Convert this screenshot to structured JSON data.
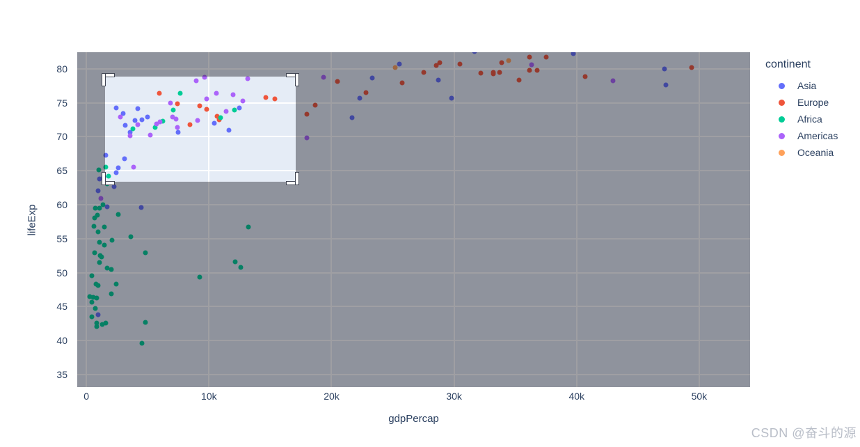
{
  "text_color": "#2a3f5f",
  "watermark": {
    "text": "CSDN @奋斗的源",
    "color": "#b9bec8"
  },
  "chart_data": {
    "type": "scatter",
    "title": "",
    "xlabel": "gdpPercap",
    "ylabel": "lifeExp",
    "x_tick_labels": [
      "0",
      "10k",
      "20k",
      "30k",
      "40k",
      "50k"
    ],
    "x_tick_values": [
      0,
      10000,
      20000,
      30000,
      40000,
      50000
    ],
    "y_tick_labels": [
      "35",
      "40",
      "45",
      "50",
      "55",
      "60",
      "65",
      "70",
      "75",
      "80"
    ],
    "y_tick_values": [
      35,
      40,
      45,
      50,
      55,
      60,
      65,
      70,
      75,
      80
    ],
    "x_range": [
      -750,
      54150
    ],
    "y_range": [
      33.15,
      82.45
    ],
    "grid": true,
    "plot_bg": "#E5ECF6",
    "grid_color": "#ffffff",
    "dim_color": "rgba(15,16,24,0.40)",
    "marker_size_px": 7,
    "legend": {
      "title": "continent",
      "position": "right",
      "entries": [
        {
          "label": "Asia",
          "color": "#636EFA"
        },
        {
          "label": "Europe",
          "color": "#EF553B"
        },
        {
          "label": "Africa",
          "color": "#00CC96"
        },
        {
          "label": "Americas",
          "color": "#AB63FA"
        },
        {
          "label": "Oceania",
          "color": "#FFA15A"
        }
      ]
    },
    "selection_box": {
      "x0": 1530,
      "x1": 17080,
      "y0": 63.4,
      "y1": 78.85
    },
    "series": [
      {
        "name": "Asia",
        "color": "#636EFA",
        "points": [
          [
            975,
            43.83
          ],
          [
            29796,
            75.64
          ],
          [
            1391,
            64.06
          ],
          [
            1714,
            59.72
          ],
          [
            4959,
            72.96
          ],
          [
            39725,
            82.21
          ],
          [
            2452,
            64.7
          ],
          [
            3541,
            70.65
          ],
          [
            11606,
            70.96
          ],
          [
            4471,
            59.55
          ],
          [
            25523,
            80.75
          ],
          [
            31656,
            82.6
          ],
          [
            4519,
            72.54
          ],
          [
            1593,
            67.3
          ],
          [
            23348,
            78.62
          ],
          [
            47307,
            77.59
          ],
          [
            10461,
            71.99
          ],
          [
            12452,
            74.24
          ],
          [
            3096,
            66.8
          ],
          [
            944,
            62.07
          ],
          [
            1091,
            63.79
          ],
          [
            22316,
            75.64
          ],
          [
            2606,
            65.48
          ],
          [
            3190,
            71.69
          ],
          [
            21655,
            72.78
          ],
          [
            47143,
            79.97
          ],
          [
            3970,
            72.4
          ],
          [
            4185,
            74.14
          ],
          [
            28718,
            78.4
          ],
          [
            7458,
            70.62
          ],
          [
            2442,
            74.25
          ],
          [
            3025,
            73.42
          ],
          [
            2281,
            62.7
          ]
        ]
      },
      {
        "name": "Europe",
        "color": "#EF553B",
        "points": [
          [
            5937,
            76.42
          ],
          [
            36126,
            79.83
          ],
          [
            33693,
            79.44
          ],
          [
            7446,
            74.85
          ],
          [
            10681,
            73.0
          ],
          [
            14619,
            75.75
          ],
          [
            22833,
            76.49
          ],
          [
            35278,
            78.33
          ],
          [
            33207,
            79.31
          ],
          [
            30470,
            80.66
          ],
          [
            32170,
            79.41
          ],
          [
            27538,
            79.48
          ],
          [
            18009,
            73.34
          ],
          [
            36181,
            81.76
          ],
          [
            40676,
            78.89
          ],
          [
            28570,
            80.55
          ],
          [
            9254,
            74.54
          ],
          [
            36798,
            79.76
          ],
          [
            49357,
            80.2
          ],
          [
            15390,
            75.56
          ],
          [
            20510,
            78.1
          ],
          [
            10808,
            72.48
          ],
          [
            9787,
            74.0
          ],
          [
            18678,
            74.66
          ],
          [
            25768,
            77.93
          ],
          [
            28821,
            80.94
          ],
          [
            33860,
            80.88
          ],
          [
            37506,
            81.7
          ],
          [
            8458,
            71.78
          ],
          [
            33203,
            79.43
          ]
        ]
      },
      {
        "name": "Africa",
        "color": "#00CC96",
        "points": [
          [
            6223,
            72.3
          ],
          [
            4797,
            42.73
          ],
          [
            1441,
            56.73
          ],
          [
            12570,
            50.73
          ],
          [
            1217,
            52.3
          ],
          [
            430,
            49.58
          ],
          [
            2042,
            50.43
          ],
          [
            706,
            44.74
          ],
          [
            1704,
            50.65
          ],
          [
            986,
            65.15
          ],
          [
            278,
            46.46
          ],
          [
            3633,
            55.32
          ],
          [
            2442,
            48.33
          ],
          [
            2082,
            54.79
          ],
          [
            5581,
            71.34
          ],
          [
            12154,
            51.58
          ],
          [
            641,
            58.04
          ],
          [
            691,
            52.95
          ],
          [
            13206,
            56.74
          ],
          [
            753,
            59.45
          ],
          [
            1328,
            60.02
          ],
          [
            943,
            56.01
          ],
          [
            579,
            46.39
          ],
          [
            1463,
            54.11
          ],
          [
            1569,
            42.59
          ],
          [
            415,
            45.68
          ],
          [
            12057,
            73.95
          ],
          [
            1045,
            59.44
          ],
          [
            759,
            48.3
          ],
          [
            1043,
            54.47
          ],
          [
            1803,
            64.16
          ],
          [
            10957,
            72.8
          ],
          [
            3820,
            71.16
          ],
          [
            824,
            42.08
          ],
          [
            4811,
            52.91
          ],
          [
            620,
            56.87
          ],
          [
            2014,
            46.86
          ],
          [
            7670,
            76.44
          ],
          [
            863,
            46.24
          ],
          [
            1598,
            65.53
          ],
          [
            1712,
            63.06
          ],
          [
            863,
            42.57
          ],
          [
            926,
            48.16
          ],
          [
            9270,
            49.34
          ],
          [
            2602,
            58.56
          ],
          [
            4513,
            39.61
          ],
          [
            1107,
            52.52
          ],
          [
            883,
            58.42
          ],
          [
            7093,
            73.92
          ],
          [
            1056,
            51.54
          ],
          [
            1272,
            42.38
          ],
          [
            469,
            43.49
          ]
        ]
      },
      {
        "name": "Americas",
        "color": "#AB63FA",
        "points": [
          [
            12779,
            75.32
          ],
          [
            3822,
            65.55
          ],
          [
            9066,
            72.39
          ],
          [
            36319,
            80.65
          ],
          [
            13172,
            78.55
          ],
          [
            7007,
            72.89
          ],
          [
            9645,
            78.78
          ],
          [
            8948,
            78.27
          ],
          [
            6025,
            72.24
          ],
          [
            6873,
            74.99
          ],
          [
            5728,
            71.88
          ],
          [
            5186,
            70.26
          ],
          [
            1202,
            60.92
          ],
          [
            3548,
            70.2
          ],
          [
            7321,
            72.57
          ],
          [
            11978,
            76.2
          ],
          [
            2749,
            72.9
          ],
          [
            9809,
            75.54
          ],
          [
            4173,
            71.75
          ],
          [
            7409,
            71.42
          ],
          [
            19329,
            78.75
          ],
          [
            18009,
            69.82
          ],
          [
            42952,
            78.24
          ],
          [
            10611,
            76.38
          ],
          [
            11416,
            73.75
          ]
        ]
      },
      {
        "name": "Oceania",
        "color": "#FFA15A",
        "points": [
          [
            34435,
            81.24
          ],
          [
            25185,
            80.2
          ]
        ]
      }
    ]
  }
}
